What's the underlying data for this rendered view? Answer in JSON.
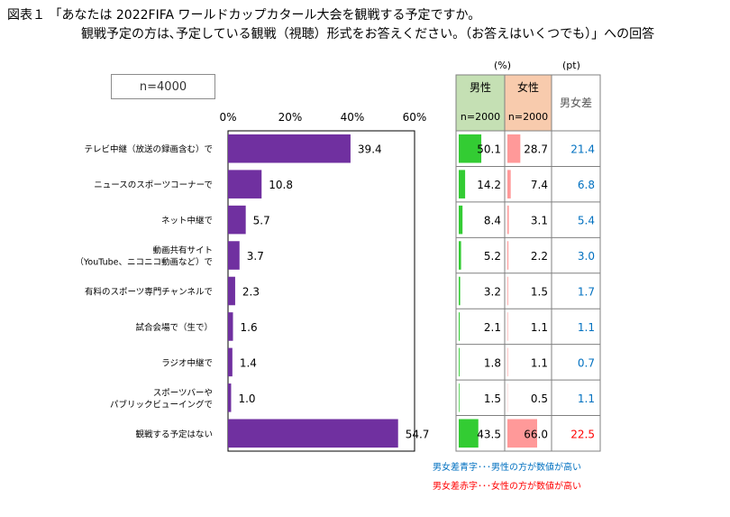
{
  "title_line1": "図表１ 「あなたは 2022FIFA ワールドカップカタール大会を観戦する予定ですか。",
  "title_line2": "観戦予定の方は､予定している観戦（視聴）形式をお答えください。（お答えはいくつでも）」への回答",
  "sample_label": "n=4000",
  "unit_pct": "(%)",
  "unit_pt": "(pt)",
  "table_headers": {
    "male": "男性",
    "male_n": "n=2000",
    "female": "女性",
    "female_n": "n=2000",
    "diff": "男女差"
  },
  "notes": {
    "blue": "男女差青字･･･男性の方が数値が高い",
    "red": "男女差赤字･･･女性の方が数値が高い"
  },
  "colors": {
    "bar": "#7030a0",
    "male_bar": "#33cc33",
    "female_bar": "#ff9999",
    "male_header_bg": "#c5e0b4",
    "female_header_bg": "#f8cbad",
    "blue_text": "#0070c0",
    "red_text": "#ff0000"
  },
  "chart_data": {
    "type": "bar",
    "orientation": "horizontal",
    "xlim": [
      0,
      60
    ],
    "xticks": [
      "0%",
      "20%",
      "40%",
      "60%"
    ],
    "categories": [
      [
        "テレビ中継（放送の録画含む）で"
      ],
      [
        "ニュースのスポーツコーナーで"
      ],
      [
        "ネット中継で"
      ],
      [
        "動画共有サイト",
        "（YouTube、ニコニコ動画など）で"
      ],
      [
        "有料のスポーツ専門チャンネルで"
      ],
      [
        "試合会場で（生で）"
      ],
      [
        "ラジオ中継で"
      ],
      [
        "スポーツバーや",
        "パブリックビューイングで"
      ],
      [
        "観戦する予定はない"
      ]
    ],
    "values": [
      39.4,
      10.8,
      5.7,
      3.7,
      2.3,
      1.6,
      1.4,
      1.0,
      54.7
    ],
    "male": [
      50.1,
      14.2,
      8.4,
      5.2,
      3.2,
      2.1,
      1.8,
      1.5,
      43.5
    ],
    "female": [
      28.7,
      7.4,
      3.1,
      2.2,
      1.5,
      1.1,
      1.1,
      0.5,
      66.0
    ],
    "diff": [
      "21.4",
      "6.8",
      "5.4",
      "3.0",
      "1.7",
      "1.1",
      "0.7",
      "1.1",
      "22.5"
    ],
    "diff_color": [
      "blue",
      "blue",
      "blue",
      "blue",
      "blue",
      "blue",
      "blue",
      "blue",
      "red"
    ]
  }
}
